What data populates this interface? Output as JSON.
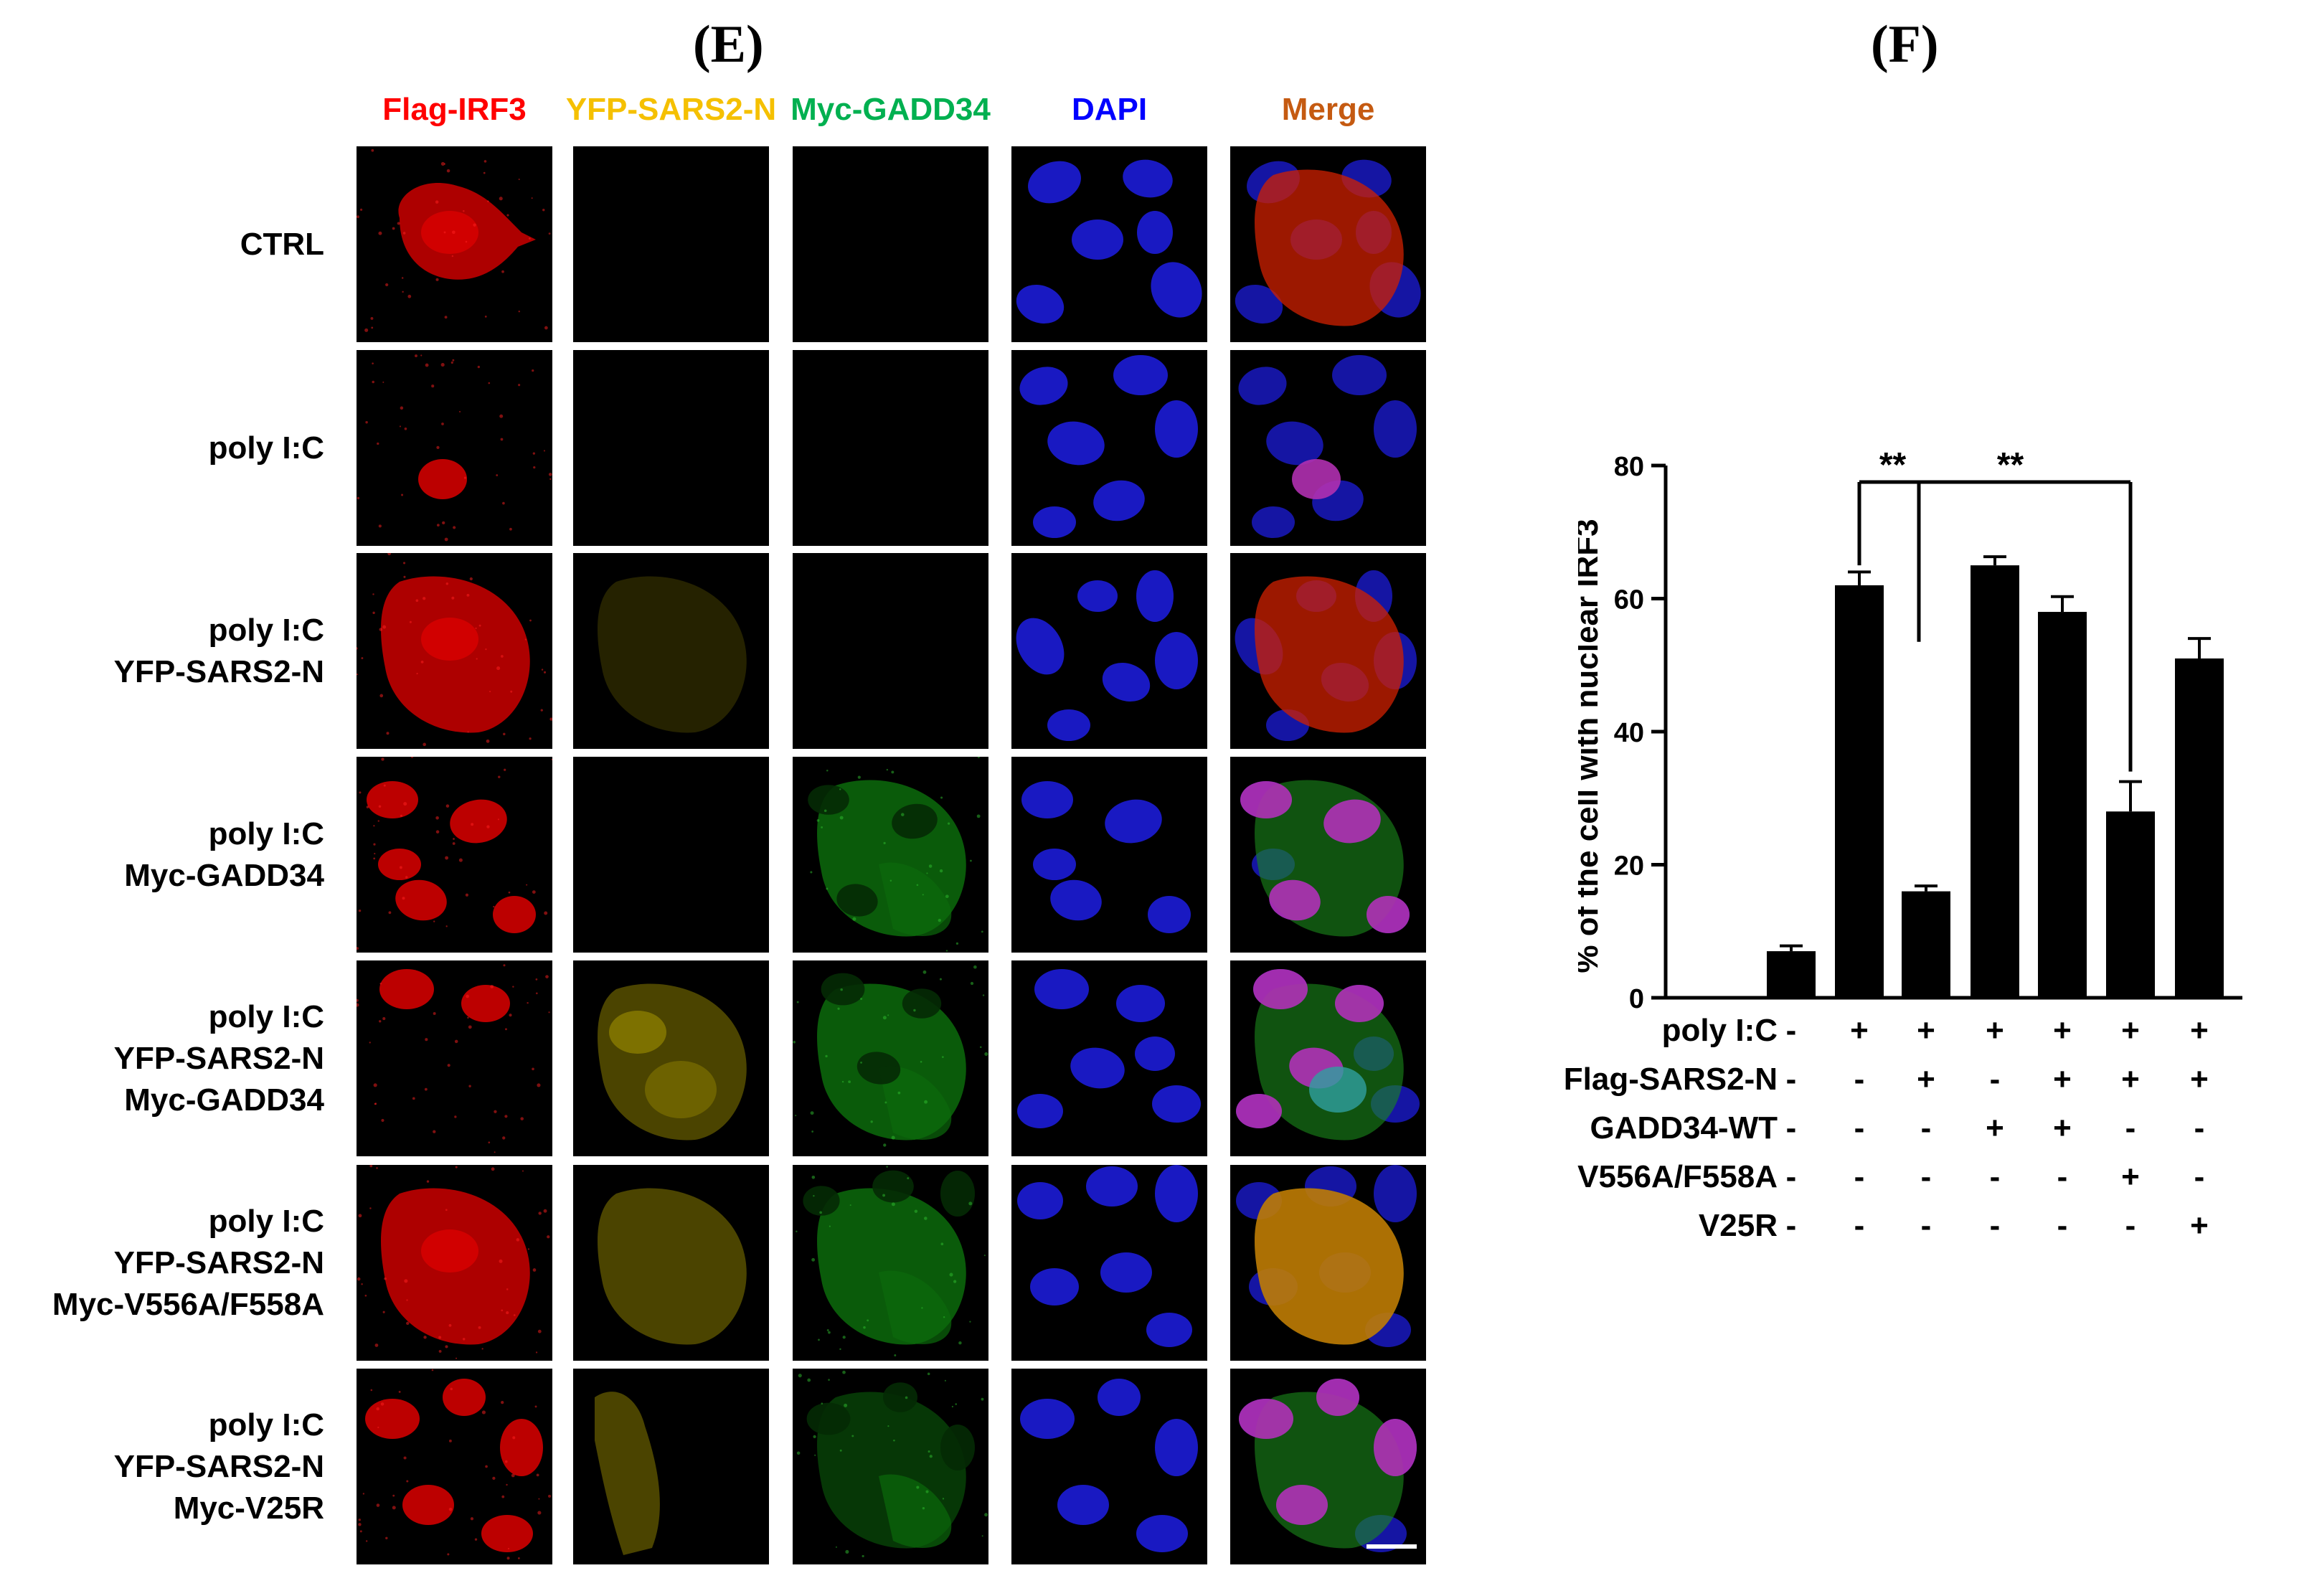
{
  "panels": {
    "left_letter": "(E)",
    "right_letter": "(F)"
  },
  "columns": [
    {
      "label": "Flag-IRF3",
      "color": "#ff0000"
    },
    {
      "label": "YFP-SARS2-N",
      "color": "#f5c000"
    },
    {
      "label": "Myc-GADD34",
      "color": "#00b050"
    },
    {
      "label": "DAPI",
      "color": "#0000ff"
    },
    {
      "label": "Merge",
      "color": "#c55a11"
    }
  ],
  "rows": [
    {
      "lines": [
        "CTRL"
      ]
    },
    {
      "lines": [
        "poly I:C"
      ]
    },
    {
      "lines": [
        "poly I:C",
        "YFP-SARS2-N"
      ]
    },
    {
      "lines": [
        "poly I:C",
        "Myc-GADD34"
      ]
    },
    {
      "lines": [
        "poly I:C",
        "YFP-SARS2-N",
        "Myc-GADD34"
      ]
    },
    {
      "lines": [
        "poly I:C",
        "YFP-SARS2-N",
        "Myc-V556A/F558A"
      ]
    },
    {
      "lines": [
        "poly I:C",
        "YFP-SARS2-N",
        "Myc-V25R"
      ]
    }
  ],
  "chart_data": {
    "type": "bar",
    "ylabel": "% of the cell with nuclear IRF3",
    "ylim": [
      0,
      80
    ],
    "yticks": [
      "0",
      "20",
      "40",
      "60",
      "80"
    ],
    "values": [
      7,
      62,
      16,
      65,
      58,
      28,
      51
    ],
    "errors": [
      0.8,
      2,
      0.8,
      1.3,
      2.3,
      4.5,
      3
    ],
    "bar_color": "#000000",
    "significance": [
      {
        "label": "**",
        "from_bar": 1,
        "to_bar": 2
      },
      {
        "label": "**",
        "from_bar": 1,
        "to_bar": 5
      }
    ],
    "condition_table": {
      "rows": [
        {
          "label": "poly I:C",
          "values": [
            "-",
            "+",
            "+",
            "+",
            "+",
            "+",
            "+"
          ]
        },
        {
          "label": "Flag-SARS2-N",
          "values": [
            "-",
            "-",
            "+",
            "-",
            "+",
            "+",
            "+"
          ]
        },
        {
          "label": "GADD34-WT",
          "values": [
            "-",
            "-",
            "-",
            "+",
            "+",
            "-",
            "-"
          ]
        },
        {
          "label": "V556A/F558A",
          "values": [
            "-",
            "-",
            "-",
            "-",
            "-",
            "+",
            "-"
          ]
        },
        {
          "label": "V25R",
          "values": [
            "-",
            "-",
            "-",
            "-",
            "-",
            "-",
            "+"
          ]
        }
      ]
    }
  }
}
